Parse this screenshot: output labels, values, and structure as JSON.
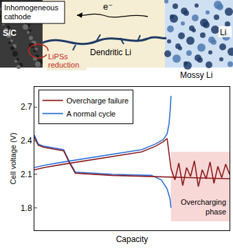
{
  "diagram": {
    "cathode_label": "Inhomogeneous cathode",
    "electron": "e⁻",
    "cathode": "S/C",
    "dendrite": "Dendritic Li",
    "reaction": "LiPSs reduction",
    "anode": "Li",
    "anode_morphology": "Mossy Li"
  },
  "chart_data": {
    "type": "line",
    "x_label": "Capacity",
    "y_label": "Cell voltage (V)",
    "xlim": [
      0,
      100
    ],
    "ylim": [
      1.6,
      2.88
    ],
    "yticks": [
      1.8,
      2.1,
      2.4,
      2.7
    ],
    "tick_labels": "y",
    "grid": false,
    "legend": "upper left",
    "series": [
      {
        "name": "Overcharge failure",
        "color": "#8b1a1a",
        "x": [
          0,
          5,
          15,
          30,
          45,
          55,
          62,
          66,
          68,
          69,
          70,
          72,
          74,
          76,
          78,
          80,
          82,
          84,
          86,
          88,
          90,
          92,
          94,
          96,
          98,
          100,
          100,
          0,
          2,
          5,
          15,
          18,
          21,
          40,
          60,
          100
        ],
        "values": [
          2.14,
          2.16,
          2.19,
          2.23,
          2.27,
          2.3,
          2.35,
          2.39,
          2.42,
          2.3,
          2.15,
          2.05,
          2.2,
          2.0,
          2.16,
          2.08,
          2.22,
          1.99,
          2.14,
          2.06,
          2.21,
          2.02,
          2.17,
          2.07,
          2.19,
          2.1,
          null,
          2.43,
          2.36,
          2.34,
          2.31,
          2.2,
          2.11,
          2.09,
          2.08,
          2.06
        ]
      },
      {
        "name": "A normal cycle",
        "color": "#2a6fdb",
        "x": [
          0,
          5,
          15,
          30,
          45,
          55,
          62,
          66,
          68,
          69,
          69.6,
          70,
          70,
          0,
          2,
          5,
          15,
          18,
          21,
          40,
          60,
          65,
          68,
          69.5,
          70
        ],
        "values": [
          2.16,
          2.18,
          2.21,
          2.25,
          2.29,
          2.32,
          2.37,
          2.41,
          2.46,
          2.55,
          2.68,
          2.8,
          null,
          2.45,
          2.37,
          2.35,
          2.32,
          2.21,
          2.12,
          2.1,
          2.09,
          2.05,
          1.97,
          1.88,
          1.8
        ]
      }
    ],
    "shaded_region": {
      "x": [
        70,
        100
      ],
      "y": [
        1.68,
        2.3
      ],
      "color": "#f8d7d7"
    },
    "annotations": [
      {
        "text": "Overcharging phase",
        "x": 99,
        "y": 1.72
      }
    ]
  }
}
